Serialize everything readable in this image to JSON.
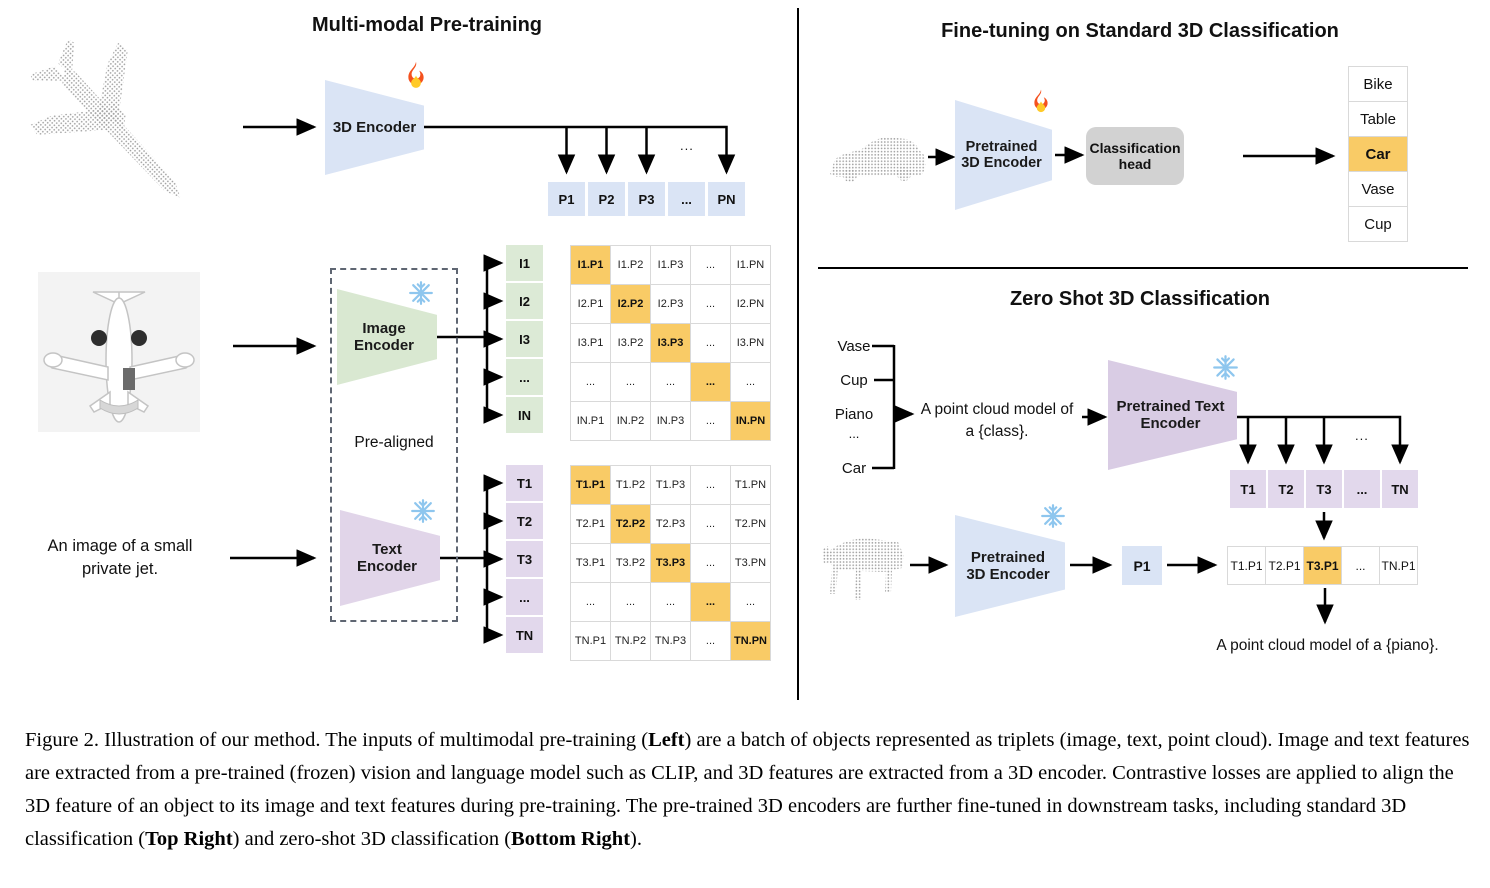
{
  "colors": {
    "encoder_blue": "#dae4f5",
    "encoder_green": "#d9e8d1",
    "encoder_purple": "#e1d5e9",
    "encoder_purple_deep": "#d9cce4",
    "highlight_orange": "#f9cb66",
    "classification_head_gray": "#d2d2d2",
    "matrix_border": "#d9d9d9"
  },
  "icons": {
    "flame": "flame-icon (trainable)",
    "snowflake": "snowflake-icon (frozen)"
  },
  "pretrain": {
    "title": "Multi-modal Pre-training",
    "encoder_3d_label": "3D Encoder",
    "image_encoder_label": "Image Encoder",
    "text_encoder_label": "Text Encoder",
    "pre_aligned_label": "Pre-aligned",
    "image_caption": "An image of a small private jet.",
    "branch_dots": "...",
    "p_row": [
      {
        "t": "P1"
      },
      {
        "t": "P2"
      },
      {
        "t": "P3"
      },
      {
        "t": "..."
      },
      {
        "t": "PN"
      }
    ],
    "i_col": [
      {
        "t": "I1"
      },
      {
        "t": "I2"
      },
      {
        "t": "I3"
      },
      {
        "t": "..."
      },
      {
        "t": "IN"
      }
    ],
    "t_col": [
      {
        "t": "T1"
      },
      {
        "t": "T2"
      },
      {
        "t": "T3"
      },
      {
        "t": "..."
      },
      {
        "t": "TN"
      }
    ],
    "i_matrix": [
      [
        {
          "t": "I1.P1",
          "h": true
        },
        {
          "t": "I1.P2"
        },
        {
          "t": "I1.P3"
        },
        {
          "t": "..."
        },
        {
          "t": "I1.PN"
        }
      ],
      [
        {
          "t": "I2.P1"
        },
        {
          "t": "I2.P2",
          "h": true
        },
        {
          "t": "I2.P3"
        },
        {
          "t": "..."
        },
        {
          "t": "I2.PN"
        }
      ],
      [
        {
          "t": "I3.P1"
        },
        {
          "t": "I3.P2"
        },
        {
          "t": "I3.P3",
          "h": true
        },
        {
          "t": "..."
        },
        {
          "t": "I3.PN"
        }
      ],
      [
        {
          "t": "..."
        },
        {
          "t": "..."
        },
        {
          "t": "..."
        },
        {
          "t": "...",
          "h": true
        },
        {
          "t": "..."
        }
      ],
      [
        {
          "t": "IN.P1"
        },
        {
          "t": "IN.P2"
        },
        {
          "t": "IN.P3"
        },
        {
          "t": "..."
        },
        {
          "t": "IN.PN",
          "h": true
        }
      ]
    ],
    "t_matrix": [
      [
        {
          "t": "T1.P1",
          "h": true
        },
        {
          "t": "T1.P2"
        },
        {
          "t": "T1.P3"
        },
        {
          "t": "..."
        },
        {
          "t": "T1.PN"
        }
      ],
      [
        {
          "t": "T2.P1"
        },
        {
          "t": "T2.P2",
          "h": true
        },
        {
          "t": "T2.P3"
        },
        {
          "t": "..."
        },
        {
          "t": "T2.PN"
        }
      ],
      [
        {
          "t": "T3.P1"
        },
        {
          "t": "T3.P2"
        },
        {
          "t": "T3.P3",
          "h": true
        },
        {
          "t": "..."
        },
        {
          "t": "T3.PN"
        }
      ],
      [
        {
          "t": "..."
        },
        {
          "t": "..."
        },
        {
          "t": "..."
        },
        {
          "t": "...",
          "h": true
        },
        {
          "t": "..."
        }
      ],
      [
        {
          "t": "TN.P1"
        },
        {
          "t": "TN.P2"
        },
        {
          "t": "TN.P3"
        },
        {
          "t": "..."
        },
        {
          "t": "TN.PN",
          "h": true
        }
      ]
    ]
  },
  "finetune": {
    "title": "Fine-tuning on Standard 3D Classification",
    "encoder_label": "Pretrained 3D Encoder",
    "head_label": "Classification head",
    "classes": [
      {
        "t": "Bike"
      },
      {
        "t": "Table"
      },
      {
        "t": "Car",
        "h": true
      },
      {
        "t": "Vase"
      },
      {
        "t": "Cup"
      }
    ]
  },
  "zeroshot": {
    "title": "Zero Shot 3D Classification",
    "classes": [
      "Vase",
      "Cup",
      "Piano",
      "...",
      "Car"
    ],
    "prompt_line1": "A point cloud model of",
    "prompt_line2": "a {class}.",
    "text_encoder_label": "Pretrained Text Encoder",
    "encoder_3d_label": "Pretrained 3D Encoder",
    "p1_label": "P1",
    "branch_dots": "...",
    "t_row": [
      {
        "t": "T1"
      },
      {
        "t": "T2"
      },
      {
        "t": "T3"
      },
      {
        "t": "..."
      },
      {
        "t": "TN"
      }
    ],
    "result_row": [
      {
        "t": "T1.P1"
      },
      {
        "t": "T2.P1"
      },
      {
        "t": "T3.P1",
        "h": true
      },
      {
        "t": "..."
      },
      {
        "t": "TN.P1"
      }
    ],
    "result_caption": "A point cloud model of a {piano}."
  },
  "caption": {
    "segments": [
      {
        "t": "Figure 2. Illustration of our method.  The inputs of multimodal pre-training ("
      },
      {
        "t": "Left",
        "b": true
      },
      {
        "t": ") are a batch of objects represented as triplets (image, text, point cloud).  Image and text features are extracted from a pre-trained (frozen) vision and language model such as CLIP, and 3D features are extracted from a 3D encoder.  Contrastive losses are applied to align the 3D feature of an object to its image and text features during pre-training.  The pre-trained 3D encoders are further fine-tuned in downstream tasks, including standard 3D classification ("
      },
      {
        "t": "Top Right",
        "b": true
      },
      {
        "t": ") and zero-shot 3D classification ("
      },
      {
        "t": "Bottom Right",
        "b": true
      },
      {
        "t": ")."
      }
    ]
  }
}
